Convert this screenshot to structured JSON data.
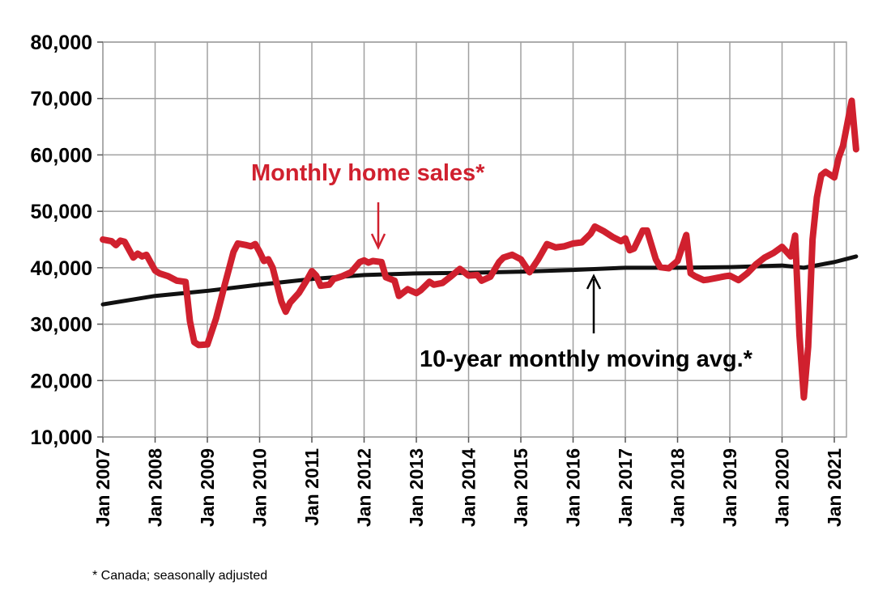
{
  "chart_data": {
    "type": "line",
    "ylim": [
      10000,
      80000
    ],
    "yticks": [
      10000,
      20000,
      30000,
      40000,
      50000,
      60000,
      70000,
      80000
    ],
    "ytick_labels": [
      "10,000",
      "20,000",
      "30,000",
      "40,000",
      "50,000",
      "60,000",
      "70,000",
      "80,000"
    ],
    "xticks": [
      "Jan 2007",
      "Jan 2008",
      "Jan 2009",
      "Jan 2010",
      "Jan 2011",
      "Jan 2012",
      "Jan 2013",
      "Jan 2014",
      "Jan 2015",
      "Jan 2016",
      "Jan 2017",
      "Jan 2018",
      "Jan 2019",
      "Jan 2020",
      "Jan 2021"
    ],
    "grid": true,
    "series": [
      {
        "name": "Monthly home sales*",
        "color": "#d0202e",
        "points": [
          [
            "2007-01",
            45000
          ],
          [
            "2007-03",
            44700
          ],
          [
            "2007-04",
            44000
          ],
          [
            "2007-05",
            44800
          ],
          [
            "2007-06",
            44600
          ],
          [
            "2007-08",
            41800
          ],
          [
            "2007-09",
            42500
          ],
          [
            "2007-10",
            42000
          ],
          [
            "2007-11",
            42300
          ],
          [
            "2008-01",
            39500
          ],
          [
            "2008-02",
            39000
          ],
          [
            "2008-04",
            38500
          ],
          [
            "2008-06",
            37700
          ],
          [
            "2008-08",
            37500
          ],
          [
            "2008-09",
            30500
          ],
          [
            "2008-10",
            26800
          ],
          [
            "2008-11",
            26300
          ],
          [
            "2009-01",
            26400
          ],
          [
            "2009-03",
            31000
          ],
          [
            "2009-05",
            37000
          ],
          [
            "2009-07",
            42800
          ],
          [
            "2009-08",
            44300
          ],
          [
            "2009-10",
            44000
          ],
          [
            "2009-11",
            43800
          ],
          [
            "2009-12",
            44200
          ],
          [
            "2010-01",
            42800
          ],
          [
            "2010-02",
            41200
          ],
          [
            "2010-03",
            41500
          ],
          [
            "2010-04",
            40000
          ],
          [
            "2010-06",
            34000
          ],
          [
            "2010-07",
            32200
          ],
          [
            "2010-08",
            33800
          ],
          [
            "2010-10",
            35500
          ],
          [
            "2010-12",
            38000
          ],
          [
            "2011-01",
            39400
          ],
          [
            "2011-02",
            38600
          ],
          [
            "2011-03",
            36800
          ],
          [
            "2011-05",
            37000
          ],
          [
            "2011-06",
            38000
          ],
          [
            "2011-08",
            38500
          ],
          [
            "2011-10",
            39200
          ],
          [
            "2011-12",
            41000
          ],
          [
            "2012-01",
            41300
          ],
          [
            "2012-02",
            40900
          ],
          [
            "2012-03",
            41200
          ],
          [
            "2012-05",
            41000
          ],
          [
            "2012-06",
            38300
          ],
          [
            "2012-08",
            37700
          ],
          [
            "2012-09",
            35000
          ],
          [
            "2012-11",
            36200
          ],
          [
            "2013-01",
            35500
          ],
          [
            "2013-02",
            36000
          ],
          [
            "2013-04",
            37500
          ],
          [
            "2013-05",
            37000
          ],
          [
            "2013-07",
            37300
          ],
          [
            "2013-09",
            38500
          ],
          [
            "2013-11",
            39800
          ],
          [
            "2014-01",
            38600
          ],
          [
            "2014-03",
            38700
          ],
          [
            "2014-04",
            37700
          ],
          [
            "2014-06",
            38400
          ],
          [
            "2014-08",
            41000
          ],
          [
            "2014-09",
            41800
          ],
          [
            "2014-11",
            42300
          ],
          [
            "2015-01",
            41500
          ],
          [
            "2015-03",
            39200
          ],
          [
            "2015-05",
            41500
          ],
          [
            "2015-07",
            44200
          ],
          [
            "2015-09",
            43600
          ],
          [
            "2015-11",
            43800
          ],
          [
            "2016-01",
            44300
          ],
          [
            "2016-03",
            44500
          ],
          [
            "2016-05",
            46000
          ],
          [
            "2016-06",
            47300
          ],
          [
            "2016-08",
            46500
          ],
          [
            "2016-10",
            45500
          ],
          [
            "2016-12",
            44700
          ],
          [
            "2017-01",
            45200
          ],
          [
            "2017-02",
            43100
          ],
          [
            "2017-03",
            43400
          ],
          [
            "2017-05",
            46600
          ],
          [
            "2017-06",
            46600
          ],
          [
            "2017-08",
            41500
          ],
          [
            "2017-09",
            40100
          ],
          [
            "2017-11",
            39900
          ],
          [
            "2018-01",
            41200
          ],
          [
            "2018-03",
            45800
          ],
          [
            "2018-04",
            39000
          ],
          [
            "2018-05",
            38500
          ],
          [
            "2018-07",
            37800
          ],
          [
            "2018-08",
            37900
          ],
          [
            "2018-10",
            38200
          ],
          [
            "2018-12",
            38500
          ],
          [
            "2019-01",
            38600
          ],
          [
            "2019-03",
            37800
          ],
          [
            "2019-05",
            39000
          ],
          [
            "2019-07",
            40600
          ],
          [
            "2019-09",
            41800
          ],
          [
            "2019-11",
            42600
          ],
          [
            "2020-01",
            43700
          ],
          [
            "2020-03",
            42000
          ],
          [
            "2020-04",
            45700
          ],
          [
            "2020-05",
            28000
          ],
          [
            "2020-06",
            17000
          ],
          [
            "2020-07",
            26000
          ],
          [
            "2020-08",
            45000
          ],
          [
            "2020-09",
            52500
          ],
          [
            "2020-10",
            56400
          ],
          [
            "2020-11",
            57000
          ],
          [
            "2020-12",
            56500
          ],
          [
            "2021-01",
            56000
          ],
          [
            "2021-02",
            59500
          ],
          [
            "2021-03",
            61600
          ],
          [
            "2021-05",
            69600
          ],
          [
            "2021-06",
            61000
          ]
        ]
      },
      {
        "name": "10-year monthly moving avg.*",
        "color": "#111111",
        "points": [
          [
            "2007-01",
            33500
          ],
          [
            "2008-01",
            35000
          ],
          [
            "2009-01",
            35900
          ],
          [
            "2010-01",
            37000
          ],
          [
            "2011-01",
            38000
          ],
          [
            "2012-01",
            38700
          ],
          [
            "2013-01",
            39000
          ],
          [
            "2014-01",
            39100
          ],
          [
            "2015-01",
            39300
          ],
          [
            "2016-01",
            39600
          ],
          [
            "2017-01",
            40000
          ],
          [
            "2018-01",
            40000
          ],
          [
            "2019-01",
            40100
          ],
          [
            "2020-01",
            40400
          ],
          [
            "2020-06",
            40000
          ],
          [
            "2021-01",
            41000
          ],
          [
            "2021-06",
            42000
          ]
        ]
      }
    ],
    "annotations": [
      {
        "text": "Monthly home sales*",
        "color": "#d0202e"
      },
      {
        "text": "10-year monthly moving avg.*",
        "color": "#000000"
      }
    ]
  },
  "footnote": "* Canada; seasonally adjusted"
}
